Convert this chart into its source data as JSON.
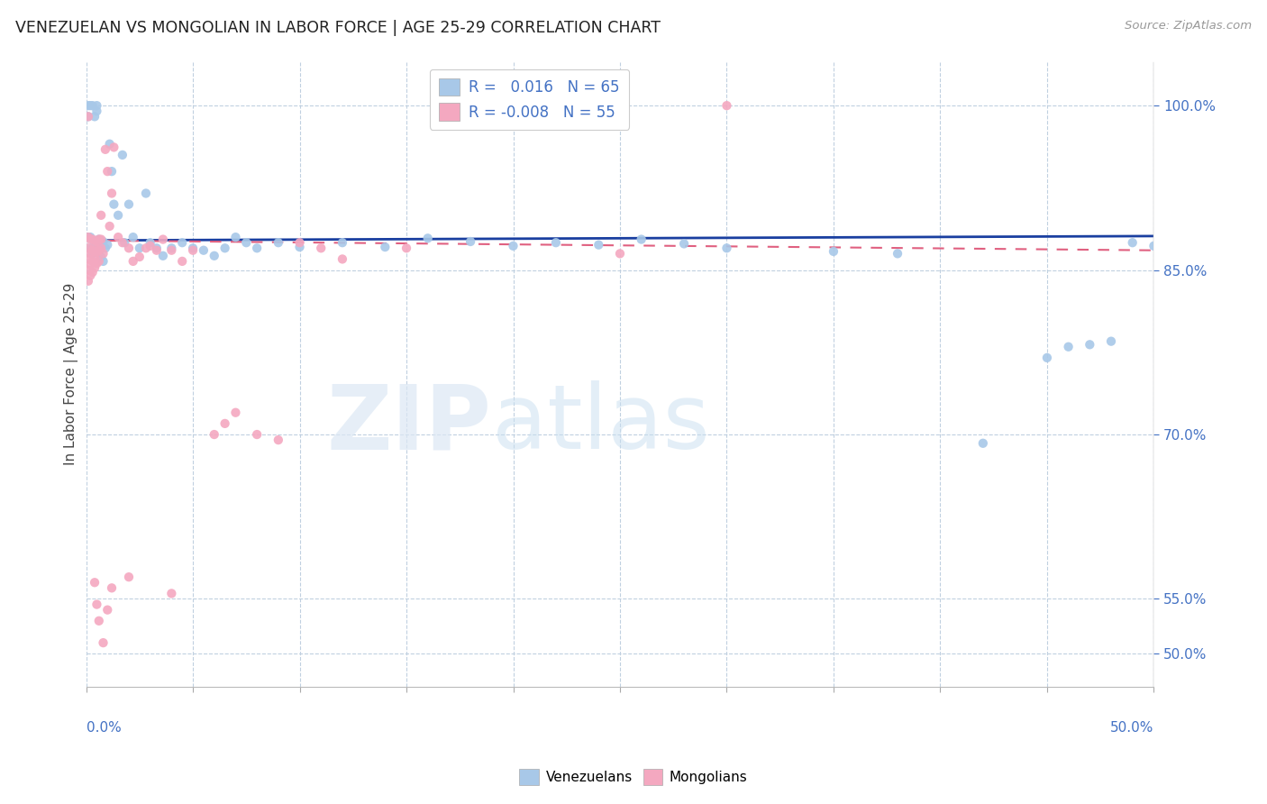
{
  "title": "VENEZUELAN VS MONGOLIAN IN LABOR FORCE | AGE 25-29 CORRELATION CHART",
  "source": "Source: ZipAtlas.com",
  "ylabel": "In Labor Force | Age 25-29",
  "ytick_labels": [
    "100.0%",
    "85.0%",
    "70.0%",
    "55.0%",
    "50.0%"
  ],
  "ytick_values": [
    1.0,
    0.85,
    0.7,
    0.55,
    0.5
  ],
  "xmin": 0.0,
  "xmax": 0.5,
  "ymin": 0.47,
  "ymax": 1.04,
  "legend_R1": "R =",
  "legend_V1": "0.016",
  "legend_N1": "N = 65",
  "legend_R2": "R = -0.008",
  "legend_V2": "-0.008",
  "legend_N2": "N = 55",
  "blue_color": "#a8c8e8",
  "pink_color": "#f4a8c0",
  "trend_blue": "#1a3fa0",
  "trend_pink": "#e06080",
  "venezuelan_x": [
    0.001,
    0.001,
    0.001,
    0.002,
    0.002,
    0.002,
    0.003,
    0.003,
    0.003,
    0.004,
    0.004,
    0.005,
    0.005,
    0.005,
    0.006,
    0.006,
    0.007,
    0.007,
    0.008,
    0.008,
    0.009,
    0.01,
    0.011,
    0.012,
    0.013,
    0.015,
    0.017,
    0.018,
    0.02,
    0.022,
    0.025,
    0.028,
    0.03,
    0.033,
    0.036,
    0.04,
    0.045,
    0.05,
    0.055,
    0.06,
    0.065,
    0.07,
    0.075,
    0.08,
    0.09,
    0.1,
    0.12,
    0.14,
    0.16,
    0.18,
    0.2,
    0.22,
    0.24,
    0.26,
    0.28,
    0.3,
    0.35,
    0.38,
    0.42,
    0.45,
    0.46,
    0.47,
    0.48,
    0.49,
    0.5
  ],
  "venezuelan_y": [
    0.88,
    0.99,
    1.0,
    0.88,
    0.87,
    1.0,
    1.0,
    0.87,
    0.865,
    0.87,
    0.99,
    0.875,
    0.995,
    1.0,
    0.878,
    0.866,
    0.872,
    0.862,
    0.876,
    0.858,
    0.87,
    0.873,
    0.965,
    0.94,
    0.91,
    0.9,
    0.955,
    0.875,
    0.91,
    0.88,
    0.87,
    0.92,
    0.875,
    0.87,
    0.863,
    0.87,
    0.875,
    0.87,
    0.868,
    0.863,
    0.87,
    0.88,
    0.875,
    0.87,
    0.875,
    0.871,
    0.875,
    0.871,
    0.879,
    0.876,
    0.872,
    0.875,
    0.873,
    0.878,
    0.874,
    0.87,
    0.867,
    0.865,
    0.692,
    0.77,
    0.78,
    0.782,
    0.785,
    0.875,
    0.872
  ],
  "mongolian_x": [
    0.001,
    0.001,
    0.001,
    0.001,
    0.001,
    0.001,
    0.002,
    0.002,
    0.002,
    0.002,
    0.003,
    0.003,
    0.003,
    0.003,
    0.004,
    0.004,
    0.004,
    0.005,
    0.005,
    0.005,
    0.006,
    0.006,
    0.006,
    0.007,
    0.007,
    0.007,
    0.008,
    0.009,
    0.01,
    0.011,
    0.012,
    0.013,
    0.015,
    0.017,
    0.02,
    0.022,
    0.025,
    0.028,
    0.03,
    0.033,
    0.036,
    0.04,
    0.045,
    0.05,
    0.06,
    0.065,
    0.07,
    0.08,
    0.09,
    0.1,
    0.11,
    0.12,
    0.15,
    0.25,
    0.3
  ],
  "mongolian_y": [
    0.88,
    0.87,
    0.86,
    0.85,
    0.84,
    0.99,
    0.878,
    0.865,
    0.855,
    0.845,
    0.878,
    0.868,
    0.858,
    0.848,
    0.872,
    0.862,
    0.852,
    0.876,
    0.866,
    0.856,
    0.878,
    0.868,
    0.858,
    0.878,
    0.9,
    0.87,
    0.865,
    0.96,
    0.94,
    0.89,
    0.92,
    0.962,
    0.88,
    0.875,
    0.87,
    0.858,
    0.862,
    0.87,
    0.872,
    0.868,
    0.878,
    0.868,
    0.858,
    0.868,
    0.7,
    0.71,
    0.72,
    0.7,
    0.695,
    0.875,
    0.87,
    0.86,
    0.87,
    0.865,
    1.0
  ],
  "mongolian_outlier_x": [
    0.004,
    0.005,
    0.006,
    0.008,
    0.01,
    0.012,
    0.02,
    0.04
  ],
  "mongolian_outlier_y": [
    0.565,
    0.545,
    0.53,
    0.51,
    0.54,
    0.56,
    0.57,
    0.555
  ]
}
